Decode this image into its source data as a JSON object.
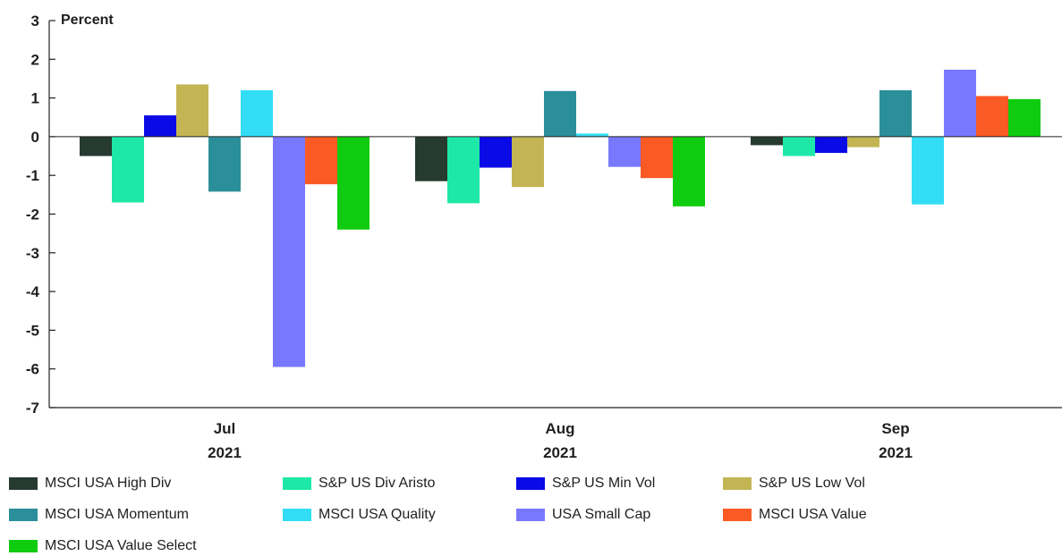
{
  "chart_data": {
    "type": "bar",
    "ylabel": "Percent",
    "ylim": [
      -7,
      3
    ],
    "yticks": [
      "3",
      "2",
      "1",
      "0",
      "-1",
      "-2",
      "-3",
      "-4",
      "-5",
      "-6",
      "-7"
    ],
    "categories": [
      {
        "month": "Jul",
        "year": "2021"
      },
      {
        "month": "Aug",
        "year": "2021"
      },
      {
        "month": "Sep",
        "year": "2021"
      }
    ],
    "series": [
      {
        "name": "MSCI USA High Div",
        "color": "#263a30",
        "values": [
          -0.5,
          -1.15,
          -0.22
        ]
      },
      {
        "name": "S&P US Div Aristo",
        "color": "#1ee8a8",
        "values": [
          -1.7,
          -1.72,
          -0.5
        ]
      },
      {
        "name": "S&P US Min Vol",
        "color": "#0a0ae6",
        "values": [
          0.55,
          -0.8,
          -0.42
        ]
      },
      {
        "name": "S&P US Low Vol",
        "color": "#c4b554",
        "values": [
          1.35,
          -1.3,
          -0.27
        ]
      },
      {
        "name": "MSCI USA Momentum",
        "color": "#2b8f9a",
        "values": [
          -1.42,
          1.18,
          1.2
        ]
      },
      {
        "name": "MSCI USA Quality",
        "color": "#33ddf5",
        "values": [
          1.2,
          0.08,
          -1.75
        ]
      },
      {
        "name": "USA Small Cap",
        "color": "#7878ff",
        "values": [
          -5.95,
          -0.78,
          1.73
        ]
      },
      {
        "name": "MSCI USA Value",
        "color": "#fa5a24",
        "values": [
          -1.23,
          -1.07,
          1.05
        ]
      },
      {
        "name": "MSCI USA Value Select",
        "color": "#10cc10",
        "values": [
          -2.4,
          -1.8,
          0.97
        ]
      }
    ]
  }
}
